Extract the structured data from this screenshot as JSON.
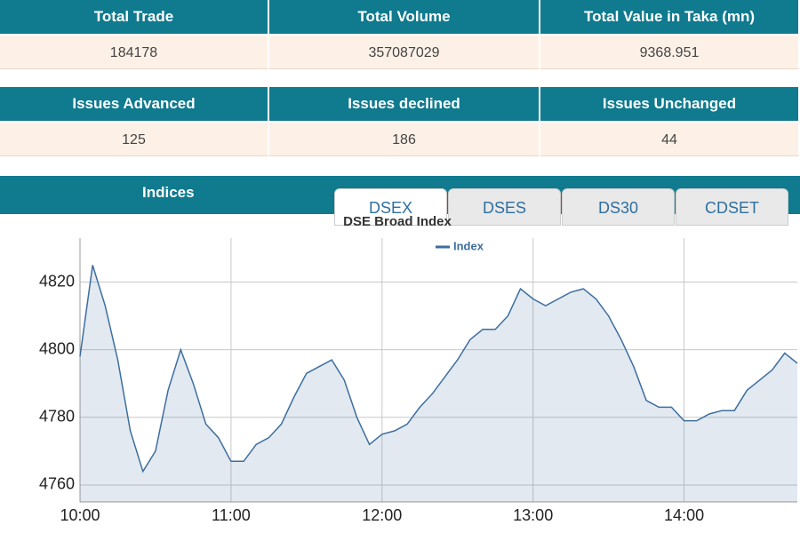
{
  "tables": [
    {
      "headers": [
        "Total Trade",
        "Total Volume",
        "Total Value in Taka (mn)"
      ],
      "values": [
        184178,
        357087029,
        9368.951
      ]
    },
    {
      "headers": [
        "Issues Advanced",
        "Issues declined",
        "Issues Unchanged"
      ],
      "values": [
        125,
        186,
        44
      ]
    }
  ],
  "indices": {
    "title": "Indices",
    "tabs": [
      "DSEX",
      "DSES",
      "DS30",
      "CDSET"
    ]
  },
  "chart_data": {
    "type": "line",
    "title": "DSE Broad Index",
    "x": [
      "10:00",
      "10:05",
      "10:10",
      "10:15",
      "10:20",
      "10:25",
      "10:30",
      "10:35",
      "10:40",
      "10:45",
      "10:50",
      "10:55",
      "11:00",
      "11:05",
      "11:10",
      "11:15",
      "11:20",
      "11:25",
      "11:30",
      "11:35",
      "11:40",
      "11:45",
      "11:50",
      "11:55",
      "12:00",
      "12:05",
      "12:10",
      "12:15",
      "12:20",
      "12:25",
      "12:30",
      "12:35",
      "12:40",
      "12:45",
      "12:50",
      "12:55",
      "13:00",
      "13:05",
      "13:10",
      "13:15",
      "13:20",
      "13:25",
      "13:30",
      "13:35",
      "13:40",
      "13:45",
      "13:50",
      "13:55",
      "14:00",
      "14:05",
      "14:10",
      "14:15",
      "14:20",
      "14:25",
      "14:30",
      "14:35",
      "14:40",
      "14:45"
    ],
    "series": [
      {
        "name": "Index",
        "color": "#3d6e9e",
        "values": [
          4798,
          4825,
          4813,
          4797,
          4776,
          4764,
          4770,
          4788,
          4800,
          4790,
          4778,
          4774,
          4767,
          4767,
          4772,
          4774,
          4778,
          4786,
          4793,
          4795,
          4797,
          4791,
          4780,
          4772,
          4775,
          4776,
          4778,
          4783,
          4787,
          4792,
          4797,
          4803,
          4806,
          4806,
          4810,
          4818,
          4815,
          4813,
          4815,
          4817,
          4818,
          4815,
          4810,
          4803,
          4795,
          4785,
          4783,
          4783,
          4779,
          4779,
          4781,
          4782,
          4782,
          4788,
          4791,
          4794,
          4799,
          4796
        ]
      }
    ],
    "xlim": [
      "10:00",
      "14:45"
    ],
    "xticks": [
      "10:00",
      "11:00",
      "12:00",
      "13:00",
      "14:00"
    ],
    "ylim": [
      4755,
      4833
    ],
    "yticks": [
      4760,
      4780,
      4800,
      4820
    ],
    "grid": true,
    "legend": "top"
  }
}
